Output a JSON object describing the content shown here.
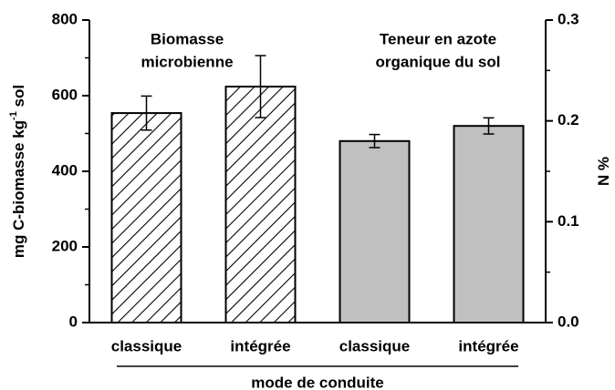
{
  "chart_data": {
    "type": "bar",
    "categories": [
      "classique",
      "intégrée",
      "classique",
      "intégrée"
    ],
    "xlabel": "mode de conduite",
    "ylabel": [
      "mg C-biomasse kg",
      "-1",
      " sol"
    ],
    "y2label": "% N",
    "annotations": [
      [
        "Biomasse",
        "microbienne"
      ],
      [
        "Teneur en azote",
        "organique du sol"
      ]
    ],
    "series": [
      {
        "values": [
          554,
          624,
          null,
          null
        ],
        "errors": [
          45,
          82,
          null,
          null
        ],
        "fill": "hatch",
        "color": "#000000",
        "axis": "y"
      },
      {
        "values": [
          null,
          null,
          0.18,
          0.195
        ],
        "errors": [
          null,
          null,
          0.0065,
          0.008
        ],
        "fill": "solid",
        "color": "#c0c0c0",
        "axis": "y2"
      }
    ],
    "ylim": [
      0,
      800
    ],
    "yticks": [
      0,
      200,
      400,
      600,
      800
    ],
    "yminorticks": [
      100,
      300,
      500,
      700
    ],
    "y2lim": [
      0,
      0.3
    ],
    "y2ticks": [
      {
        "value": 0,
        "label": "0.0"
      },
      0.1,
      0.2,
      0.3
    ],
    "y2minorticks": [
      0.05,
      0.15,
      0.25
    ]
  }
}
